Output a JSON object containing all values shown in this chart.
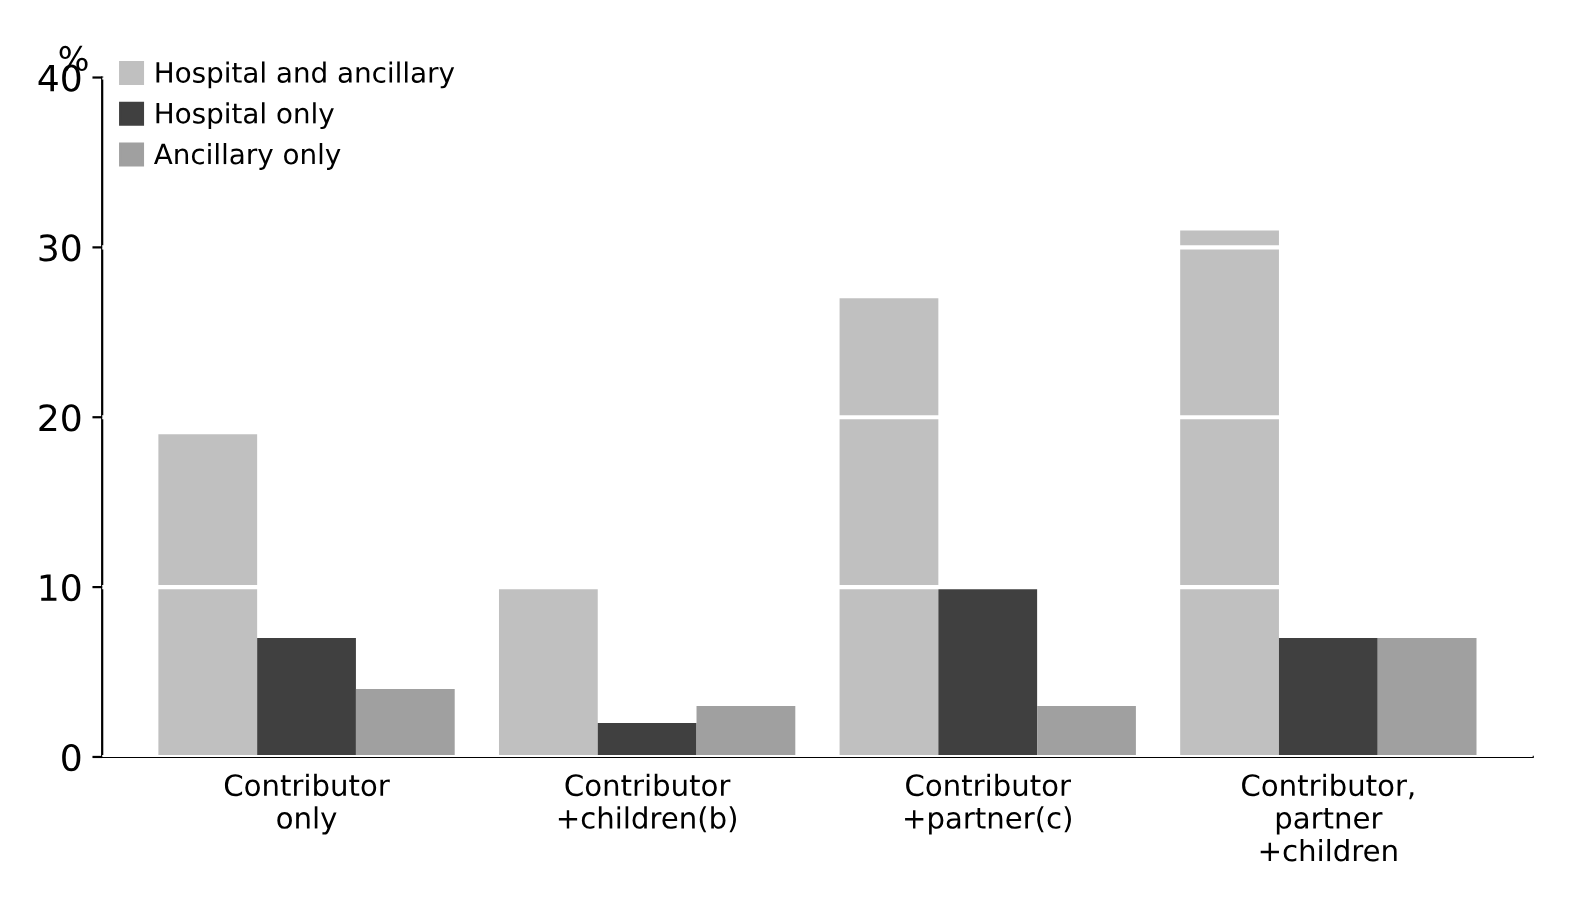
{
  "chart_data": {
    "type": "bar",
    "ylabel": "%",
    "categories": [
      "Contributor\nonly",
      "Contributor\n+children(b)",
      "Contributor\n+partner(c)",
      "Contributor,\npartner\n+children"
    ],
    "series": [
      {
        "name": "Hospital and ancillary",
        "color": "#c0c0c0",
        "values": [
          19,
          10,
          27,
          31
        ]
      },
      {
        "name": "Hospital only",
        "color": "#404040",
        "values": [
          7,
          2,
          10,
          7
        ]
      },
      {
        "name": "Ancillary only",
        "color": "#a0a0a0",
        "values": [
          4,
          3,
          3,
          7
        ]
      }
    ],
    "ylim": [
      0,
      40
    ],
    "yticks": [
      0,
      10,
      20,
      30,
      40
    ],
    "grid": "y",
    "legend": "top left"
  }
}
